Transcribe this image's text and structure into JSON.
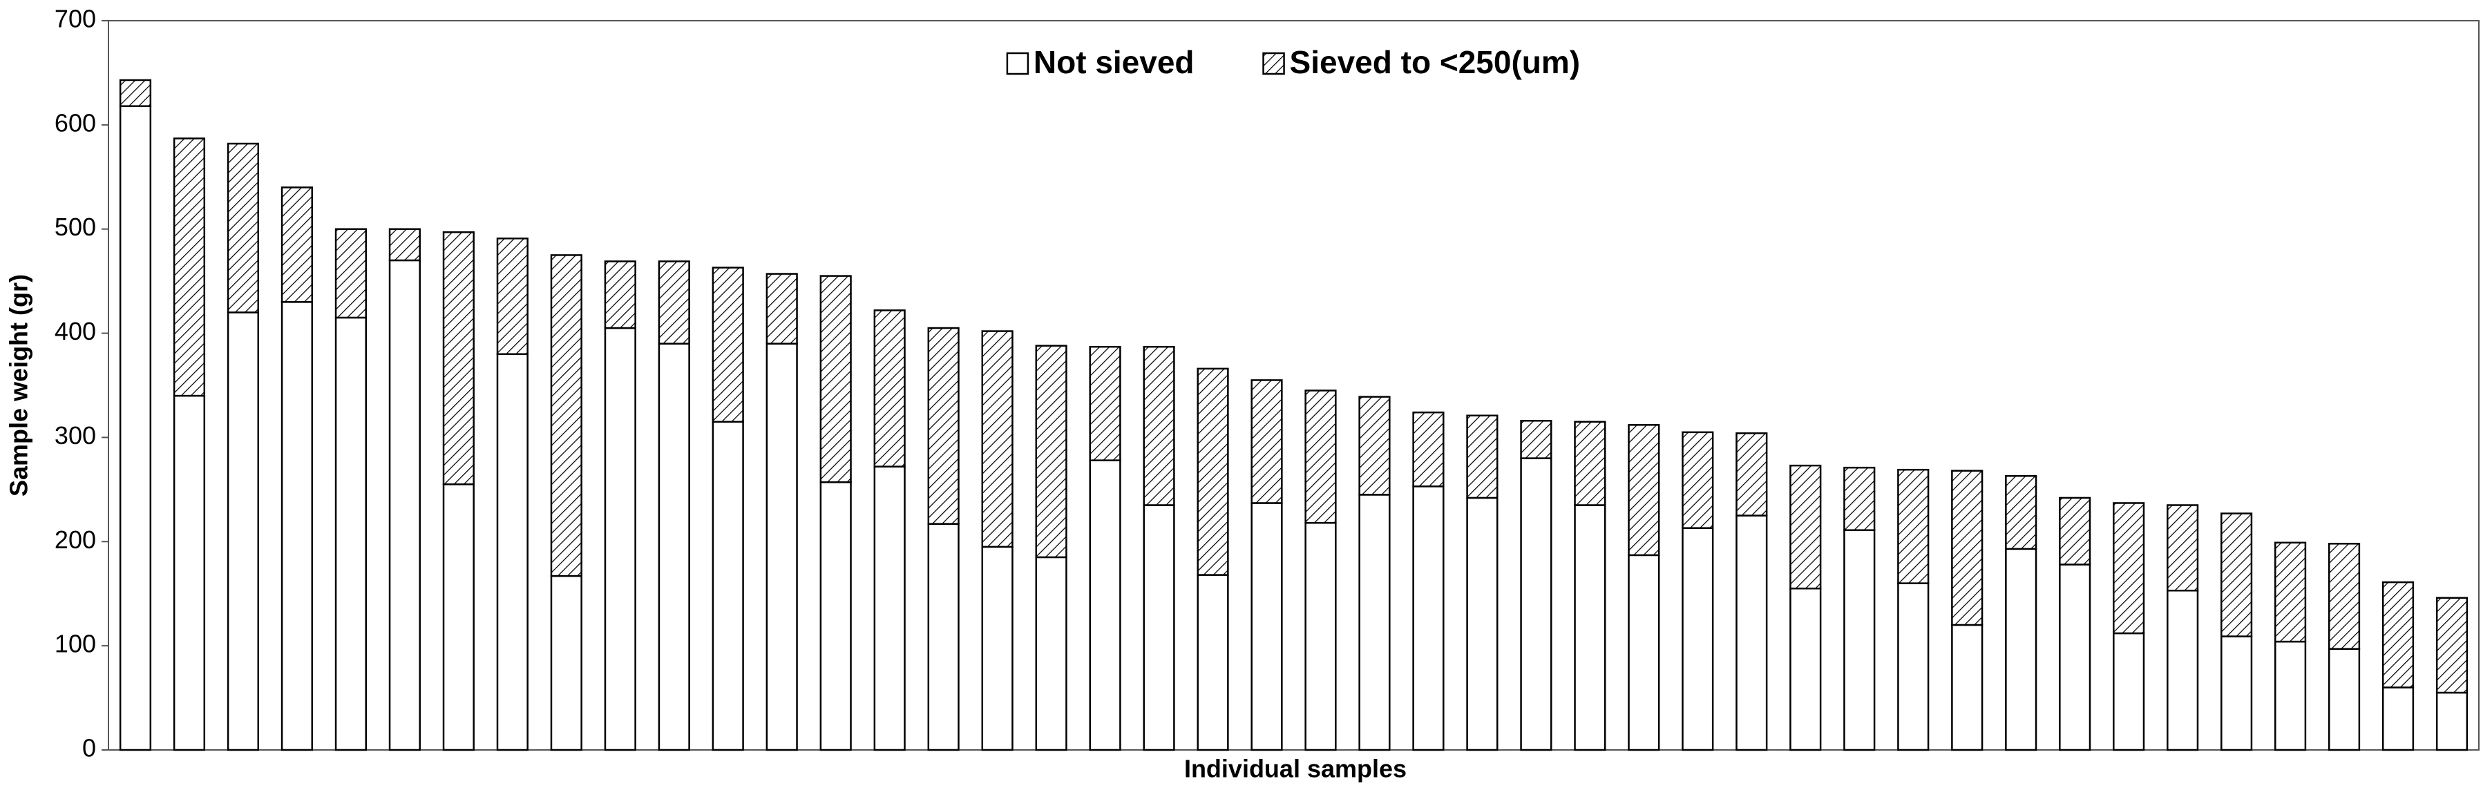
{
  "chart_data": {
    "type": "stacked_bar",
    "x_label": "Individual samples",
    "y_label": "Sample weight (gr)",
    "categories": [
      null,
      null,
      null,
      null,
      null,
      null,
      null,
      null,
      null,
      null,
      null,
      null,
      null,
      null,
      null,
      null,
      null,
      null,
      null,
      null,
      null,
      null,
      null,
      null,
      null,
      null,
      null,
      null,
      null,
      null,
      null,
      null,
      null,
      null,
      null,
      null,
      null,
      null,
      null,
      null,
      null,
      null,
      null,
      null
    ],
    "series": [
      {
        "name": "Not sieved",
        "color": "#ffffff",
        "pattern": "solid",
        "values": [
          618,
          340,
          420,
          430,
          415,
          470,
          255,
          380,
          167,
          405,
          390,
          315,
          390,
          257,
          272,
          217,
          195,
          185,
          278,
          235,
          168,
          237,
          218,
          245,
          253,
          242,
          280,
          235,
          187,
          213,
          225,
          155,
          211,
          160,
          120,
          193,
          178,
          112,
          153,
          109,
          104,
          97,
          60,
          55
        ]
      },
      {
        "name": "Sieved to <250(um)",
        "color": "#ffffff",
        "pattern": "hatch",
        "values": [
          25,
          247,
          162,
          110,
          85,
          30,
          242,
          111,
          308,
          64,
          79,
          148,
          67,
          198,
          150,
          188,
          207,
          203,
          109,
          152,
          198,
          118,
          127,
          94,
          71,
          79,
          36,
          80,
          125,
          92,
          79,
          118,
          60,
          109,
          148,
          70,
          64,
          125,
          82,
          118,
          95,
          101,
          101,
          91
        ]
      }
    ],
    "ylim": [
      0,
      700
    ],
    "yticks": [
      0,
      100,
      200,
      300,
      400,
      500,
      600,
      700
    ],
    "grid": false,
    "legend_position": "top-center"
  }
}
